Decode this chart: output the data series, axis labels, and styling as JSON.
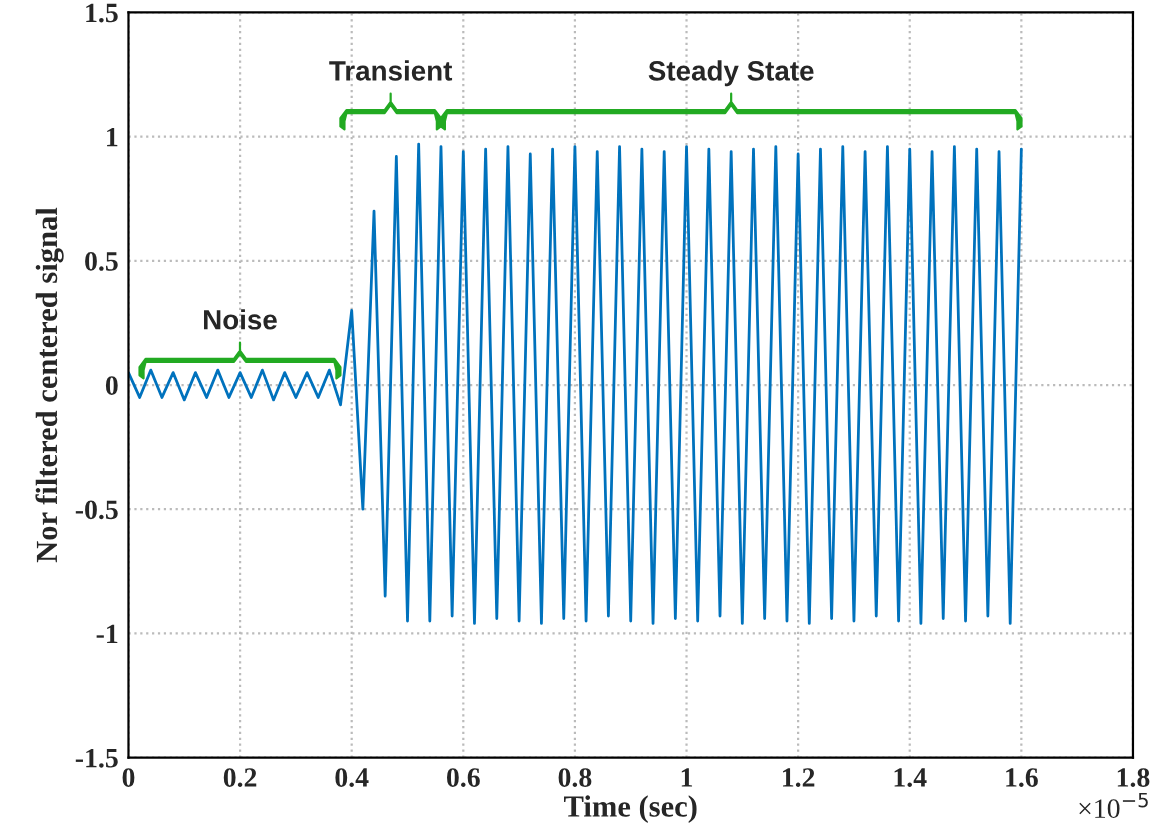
{
  "chart_data": {
    "type": "line",
    "xlabel": "Time (sec)",
    "ylabel": "Nor filtered centered signal",
    "x": [
      0,
      0.02,
      0.04,
      0.06,
      0.08,
      0.1,
      0.12,
      0.14,
      0.16,
      0.18,
      0.2,
      0.22,
      0.24,
      0.26,
      0.28,
      0.3,
      0.32,
      0.34,
      0.36,
      0.38,
      0.4,
      0.42,
      0.44,
      0.46,
      0.48,
      0.5,
      0.52,
      0.54,
      0.56,
      0.58,
      0.6,
      0.62,
      0.64,
      0.66,
      0.68,
      0.7,
      0.72,
      0.74,
      0.76,
      0.78,
      0.8,
      0.82,
      0.84,
      0.86,
      0.88,
      0.9,
      0.92,
      0.94,
      0.96,
      0.98,
      1,
      1.02,
      1.04,
      1.06,
      1.08,
      1.1,
      1.12,
      1.14,
      1.16,
      1.18,
      1.2,
      1.22,
      1.24,
      1.26,
      1.28,
      1.3,
      1.32,
      1.34,
      1.36,
      1.38,
      1.4,
      1.42,
      1.44,
      1.46,
      1.48,
      1.5,
      1.52,
      1.54,
      1.56,
      1.58,
      1.6
    ],
    "series": [
      {
        "color": "#0072bd",
        "values": [
          0.05,
          -0.05,
          0.06,
          -0.05,
          0.05,
          -0.06,
          0.05,
          -0.05,
          0.06,
          -0.05,
          0.05,
          -0.05,
          0.06,
          -0.06,
          0.05,
          -0.05,
          0.05,
          -0.05,
          0.06,
          -0.08,
          0.3,
          -0.5,
          0.7,
          -0.85,
          0.92,
          -0.95,
          0.97,
          -0.95,
          0.96,
          -0.93,
          0.94,
          -0.96,
          0.95,
          -0.94,
          0.96,
          -0.95,
          0.93,
          -0.96,
          0.95,
          -0.94,
          0.96,
          -0.95,
          0.94,
          -0.93,
          0.96,
          -0.95,
          0.95,
          -0.96,
          0.94,
          -0.94,
          0.96,
          -0.95,
          0.95,
          -0.93,
          0.94,
          -0.96,
          0.95,
          -0.94,
          0.96,
          -0.95,
          0.93,
          -0.96,
          0.95,
          -0.94,
          0.96,
          -0.95,
          0.94,
          -0.93,
          0.96,
          -0.95,
          0.95,
          -0.96,
          0.94,
          -0.94,
          0.96,
          -0.95,
          0.95,
          -0.93,
          0.94,
          -0.96,
          0.95
        ]
      }
    ],
    "xlim": [
      0,
      1.8
    ],
    "xticks": [
      0,
      0.2,
      0.4,
      0.6,
      0.8,
      1,
      1.2,
      1.4,
      1.6,
      1.8
    ],
    "ylim": [
      -1.5,
      1.5
    ],
    "yticks": [
      -1.5,
      -1,
      -0.5,
      0,
      0.5,
      1,
      1.5
    ],
    "grid": true,
    "annotations": [
      "×10$^{−5}$",
      "Noise",
      "Transient",
      "Steady State"
    ]
  }
}
